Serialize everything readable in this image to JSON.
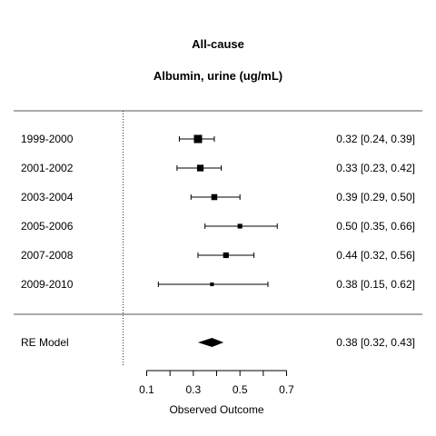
{
  "chart_data": {
    "type": "forest",
    "title": "All-cause",
    "subtitle": "Albumin, urine (ug/mL)",
    "xlabel": "Observed Outcome",
    "xlim": [
      0.1,
      0.7
    ],
    "xticks": [
      "0.1",
      "0.3",
      "0.5",
      "0.7"
    ],
    "reference_line": 0.0,
    "studies": [
      {
        "label": "1999-2000",
        "estimate": 0.32,
        "lower": 0.24,
        "upper": 0.39,
        "weight": 1.0,
        "text": "0.32 [0.24, 0.39]"
      },
      {
        "label": "2001-2002",
        "estimate": 0.33,
        "lower": 0.23,
        "upper": 0.42,
        "weight": 0.75,
        "text": "0.33 [0.23, 0.42]"
      },
      {
        "label": "2003-2004",
        "estimate": 0.39,
        "lower": 0.29,
        "upper": 0.5,
        "weight": 0.65,
        "text": "0.39 [0.29, 0.50]"
      },
      {
        "label": "2005-2006",
        "estimate": 0.5,
        "lower": 0.35,
        "upper": 0.66,
        "weight": 0.45,
        "text": "0.50 [0.35, 0.66]"
      },
      {
        "label": "2007-2008",
        "estimate": 0.44,
        "lower": 0.32,
        "upper": 0.56,
        "weight": 0.6,
        "text": "0.44 [0.32, 0.56]"
      },
      {
        "label": "2009-2010",
        "estimate": 0.38,
        "lower": 0.15,
        "upper": 0.62,
        "weight": 0.3,
        "text": "0.38 [0.15, 0.62]"
      }
    ],
    "summary": {
      "label": "RE Model",
      "estimate": 0.38,
      "lower": 0.32,
      "upper": 0.43,
      "text": "0.38 [0.32, 0.43]"
    }
  }
}
